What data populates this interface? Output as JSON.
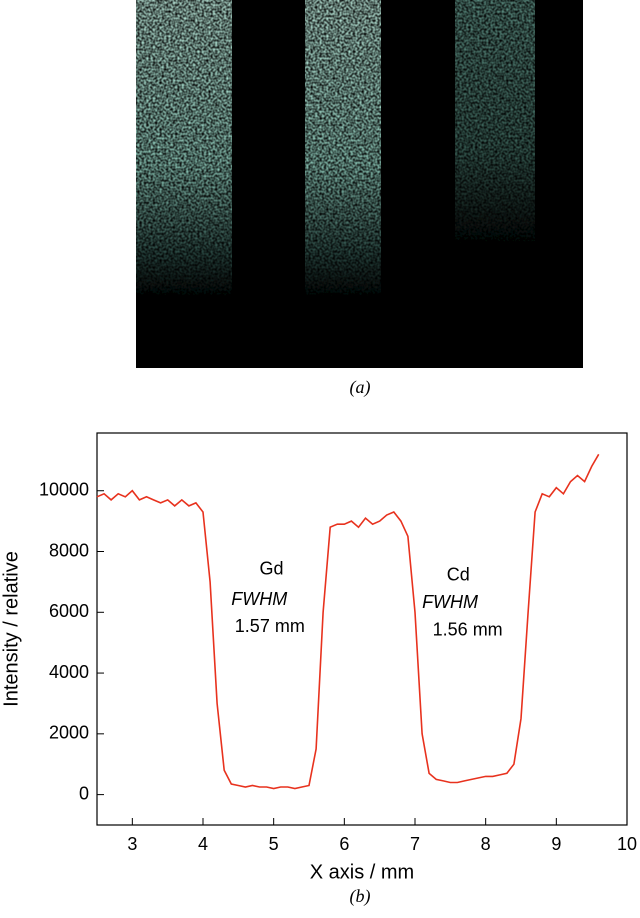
{
  "panel_labels": [
    "(a)",
    "(b)"
  ],
  "chart_data": {
    "type": "line",
    "xlabel": "X axis / mm",
    "ylabel": "Intensity / relative",
    "annotations": [
      "Gd",
      "FWHM",
      "1.57 mm",
      "Cd",
      "FWHM",
      "1.56 mm"
    ],
    "x": [
      2.5,
      2.6,
      2.7,
      2.8,
      2.9,
      3.0,
      3.1,
      3.2,
      3.3,
      3.4,
      3.5,
      3.6,
      3.7,
      3.8,
      3.9,
      4.0,
      4.1,
      4.2,
      4.3,
      4.4,
      4.5,
      4.6,
      4.7,
      4.8,
      4.9,
      5.0,
      5.1,
      5.2,
      5.3,
      5.4,
      5.5,
      5.6,
      5.7,
      5.8,
      5.9,
      6.0,
      6.1,
      6.2,
      6.3,
      6.4,
      6.5,
      6.6,
      6.7,
      6.8,
      6.9,
      7.0,
      7.1,
      7.2,
      7.3,
      7.4,
      7.5,
      7.6,
      7.7,
      7.8,
      7.9,
      8.0,
      8.1,
      8.2,
      8.3,
      8.4,
      8.5,
      8.6,
      8.7,
      8.8,
      8.9,
      9.0,
      9.1,
      9.2,
      9.3,
      9.4,
      9.5,
      9.6
    ],
    "series": [
      {
        "color": "#e8321e",
        "values": [
          9800,
          9900,
          9700,
          9900,
          9800,
          10000,
          9700,
          9800,
          9700,
          9600,
          9700,
          9500,
          9700,
          9500,
          9600,
          9300,
          7000,
          3000,
          800,
          350,
          300,
          250,
          300,
          250,
          250,
          200,
          250,
          250,
          200,
          250,
          300,
          1500,
          6000,
          8800,
          8900,
          8900,
          9000,
          8800,
          9100,
          8900,
          9000,
          9200,
          9300,
          9000,
          8500,
          6000,
          2000,
          700,
          500,
          450,
          400,
          400,
          450,
          500,
          550,
          600,
          600,
          650,
          700,
          1000,
          2500,
          6000,
          9300,
          9900,
          9800,
          10100,
          9900,
          10300,
          10500,
          10300,
          10800,
          11200
        ]
      }
    ],
    "xlim": [
      2.5,
      10
    ],
    "xticks": [
      3,
      4,
      5,
      6,
      7,
      8,
      9,
      10
    ],
    "ylim": [
      -1000,
      11900
    ],
    "yticks": [
      0,
      2000,
      4000,
      6000,
      8000,
      10000
    ]
  }
}
